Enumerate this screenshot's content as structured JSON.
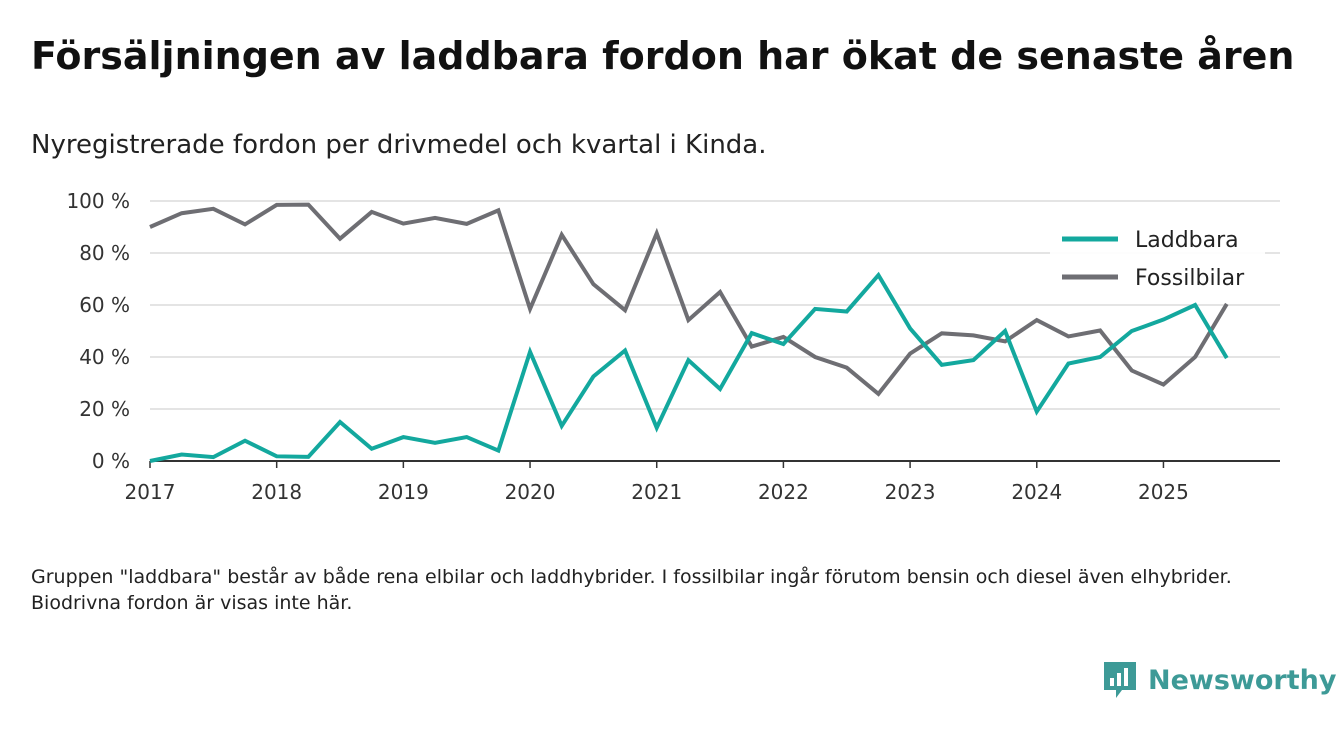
{
  "title": "Försäljningen av laddbara fordon har ökat de senaste åren",
  "subtitle": "Nyregistrerade fordon per drivmedel och kvartal i Kinda.",
  "note": "Gruppen \"laddbara\" består av både rena elbilar och laddhybrider. I fossilbilar ingår förutom bensin och diesel även elhybrider. Biodrivna fordon är visas inte här.",
  "brand": {
    "name": "Newsworthy",
    "icon": "newsworthy-logo-icon",
    "color": "#3d9a97"
  },
  "chart_data": {
    "type": "line",
    "title": "Försäljningen av laddbara fordon har ökat de senaste åren",
    "xlabel": "",
    "ylabel": "",
    "ylim": [
      0,
      100
    ],
    "yticks": [
      0,
      20,
      40,
      60,
      80,
      100
    ],
    "ytick_labels": [
      "0 %",
      "20 %",
      "40 %",
      "60 %",
      "80 %",
      "100 %"
    ],
    "xlim": [
      2017,
      2025.92
    ],
    "xticks": [
      2017,
      2018,
      2019,
      2020,
      2021,
      2022,
      2023,
      2024,
      2025
    ],
    "xtick_labels": [
      "2017",
      "2018",
      "2019",
      "2020",
      "2021",
      "2022",
      "2023",
      "2024",
      "2025"
    ],
    "grid": true,
    "legend_position": "top-right",
    "x": [
      2017,
      2017.25,
      2017.5,
      2017.75,
      2018,
      2018.25,
      2018.5,
      2018.75,
      2019,
      2019.25,
      2019.5,
      2019.75,
      2020,
      2020.25,
      2020.5,
      2020.75,
      2021,
      2021.25,
      2021.5,
      2021.75,
      2022,
      2022.25,
      2022.5,
      2022.75,
      2023,
      2023.25,
      2023.5,
      2023.75,
      2024,
      2024.25,
      2024.5,
      2024.75,
      2025,
      2025.25,
      2025.5
    ],
    "series": [
      {
        "name": "Laddbara",
        "color": "#13a89e",
        "values": [
          0,
          2.5,
          1.5,
          7.8,
          1.8,
          1.6,
          15,
          4.7,
          9.2,
          7,
          9.2,
          4,
          42,
          13.5,
          32.5,
          42.5,
          12.8,
          38.8,
          27.7,
          49.2,
          45,
          58.5,
          57.5,
          71.5,
          51,
          37,
          38.8,
          50,
          19,
          37.5,
          40,
          50,
          54.4,
          60,
          39.6
        ]
      },
      {
        "name": "Fossilbilar",
        "color": "#6e6e73",
        "values": [
          90,
          95.3,
          97,
          91,
          98.5,
          98.6,
          85.5,
          95.8,
          91.3,
          93.5,
          91.2,
          96.4,
          58.5,
          87,
          68,
          58,
          87.6,
          54.2,
          65,
          44,
          47.7,
          40,
          35.9,
          25.8,
          41.3,
          49.1,
          48.3,
          46,
          54.2,
          47.9,
          50.2,
          34.8,
          29.4,
          40,
          60.4
        ]
      }
    ]
  }
}
